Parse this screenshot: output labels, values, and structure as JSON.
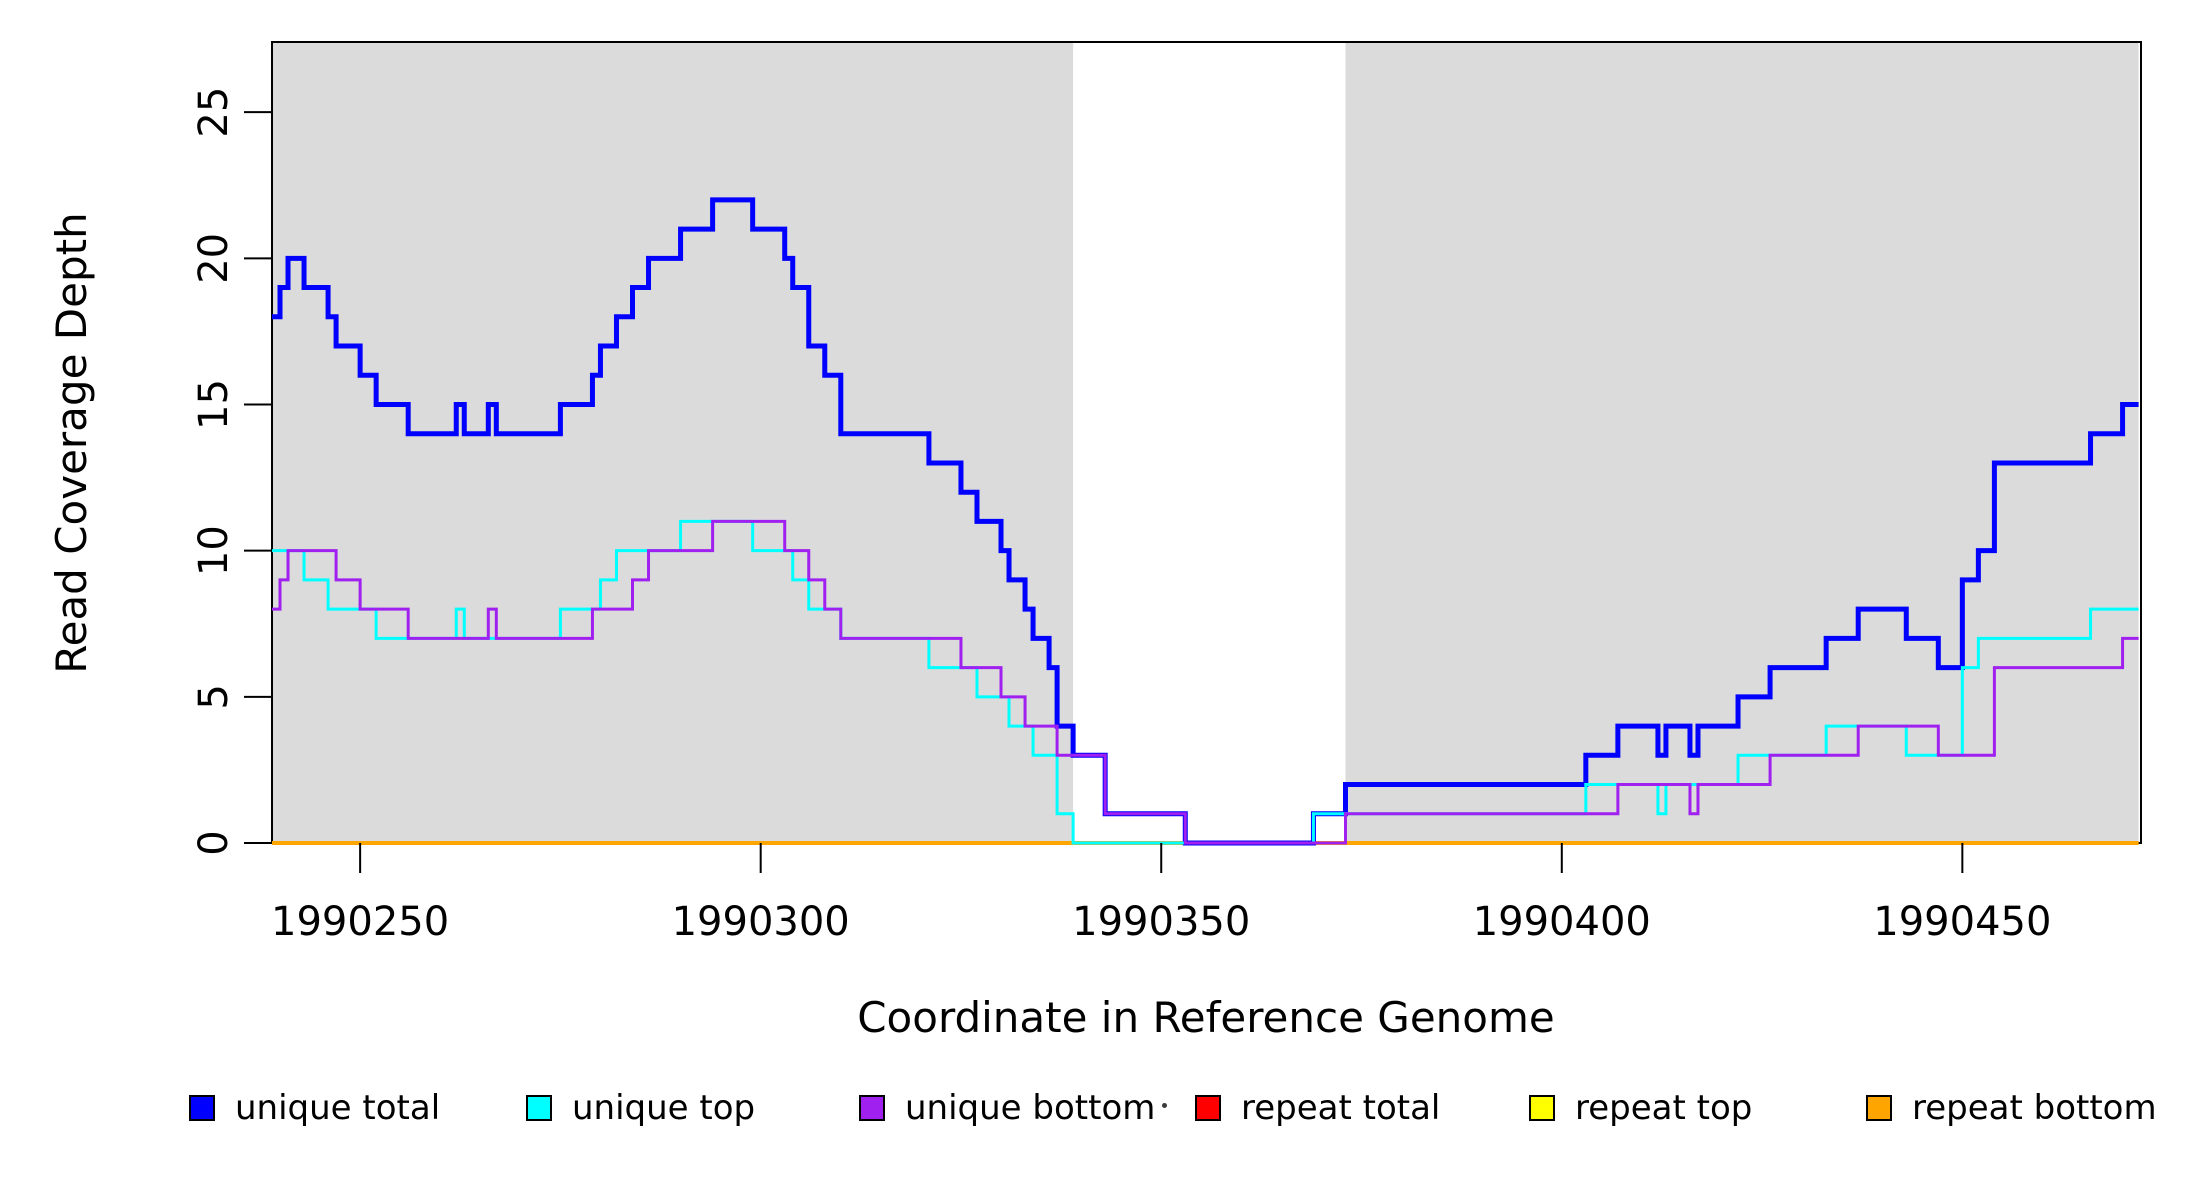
{
  "figure": {
    "background": "#ffffff"
  },
  "x_axis": {
    "label": "Coordinate in Reference Genome"
  },
  "y_axis": {
    "label": "Read Coverage Depth"
  },
  "legend": {
    "items": [
      {
        "label": "unique total",
        "color": "#0000FF"
      },
      {
        "label": "unique top",
        "color": "#00FFFF"
      },
      {
        "label": "unique bottom",
        "color": "#A020F0"
      },
      {
        "label": "repeat total",
        "color": "#FF0000"
      },
      {
        "label": "repeat top",
        "color": "#FFFF00"
      },
      {
        "label": "repeat bottom",
        "color": "#FFA500"
      }
    ]
  },
  "chart_data": {
    "type": "line",
    "subtype": "step-coverage",
    "title": "",
    "xlabel": "Coordinate in Reference Genome",
    "ylabel": "Read Coverage Depth",
    "xlim": [
      1990239,
      1990472
    ],
    "ylim": [
      0,
      27.4
    ],
    "x_ticks": [
      1990250,
      1990300,
      1990350,
      1990400,
      1990450
    ],
    "y_ticks": [
      0,
      5,
      10,
      15,
      20,
      25
    ],
    "grid": false,
    "legend_position": "bottom",
    "background_shading": {
      "color": "#DBDBDB",
      "regions": [
        [
          1990239,
          1990339
        ],
        [
          1990373,
          1990472
        ]
      ]
    },
    "series": [
      {
        "name": "repeat total",
        "color": "#FF0000",
        "width": 3,
        "segments": [
          [
            1990239,
            1990472,
            0
          ]
        ]
      },
      {
        "name": "repeat top",
        "color": "#FFFF00",
        "width": 3,
        "segments": [
          [
            1990239,
            1990472,
            0
          ]
        ]
      },
      {
        "name": "repeat bottom",
        "color": "#FFA500",
        "width": 4,
        "segments": [
          [
            1990239,
            1990472,
            0
          ]
        ]
      },
      {
        "name": "unique total",
        "color": "#0000FF",
        "width": 5,
        "segments": [
          [
            1990239,
            1990240,
            18
          ],
          [
            1990240,
            1990241,
            19
          ],
          [
            1990241,
            1990243,
            20
          ],
          [
            1990243,
            1990246,
            19
          ],
          [
            1990246,
            1990247,
            18
          ],
          [
            1990247,
            1990250,
            17
          ],
          [
            1990250,
            1990252,
            16
          ],
          [
            1990252,
            1990256,
            15
          ],
          [
            1990256,
            1990262,
            14
          ],
          [
            1990262,
            1990263,
            15
          ],
          [
            1990263,
            1990266,
            14
          ],
          [
            1990266,
            1990267,
            15
          ],
          [
            1990267,
            1990275,
            14
          ],
          [
            1990275,
            1990279,
            15
          ],
          [
            1990279,
            1990280,
            16
          ],
          [
            1990280,
            1990282,
            17
          ],
          [
            1990282,
            1990284,
            18
          ],
          [
            1990284,
            1990286,
            19
          ],
          [
            1990286,
            1990290,
            20
          ],
          [
            1990290,
            1990294,
            21
          ],
          [
            1990294,
            1990299,
            22
          ],
          [
            1990299,
            1990303,
            21
          ],
          [
            1990303,
            1990304,
            20
          ],
          [
            1990304,
            1990306,
            19
          ],
          [
            1990306,
            1990308,
            17
          ],
          [
            1990308,
            1990310,
            16
          ],
          [
            1990310,
            1990321,
            14
          ],
          [
            1990321,
            1990325,
            13
          ],
          [
            1990325,
            1990327,
            12
          ],
          [
            1990327,
            1990330,
            11
          ],
          [
            1990330,
            1990331,
            10
          ],
          [
            1990331,
            1990333,
            9
          ],
          [
            1990333,
            1990334,
            8
          ],
          [
            1990334,
            1990336,
            7
          ],
          [
            1990336,
            1990337,
            6
          ],
          [
            1990337,
            1990339,
            4
          ],
          [
            1990339,
            1990343,
            3
          ],
          [
            1990343,
            1990353,
            1
          ],
          [
            1990353,
            1990369,
            0
          ],
          [
            1990369,
            1990373,
            1
          ],
          [
            1990373,
            1990403,
            2
          ],
          [
            1990403,
            1990407,
            3
          ],
          [
            1990407,
            1990412,
            4
          ],
          [
            1990412,
            1990413,
            3
          ],
          [
            1990413,
            1990416,
            4
          ],
          [
            1990416,
            1990417,
            3
          ],
          [
            1990417,
            1990422,
            4
          ],
          [
            1990422,
            1990426,
            5
          ],
          [
            1990426,
            1990433,
            6
          ],
          [
            1990433,
            1990437,
            7
          ],
          [
            1990437,
            1990443,
            8
          ],
          [
            1990443,
            1990447,
            7
          ],
          [
            1990447,
            1990450,
            6
          ],
          [
            1990450,
            1990452,
            9
          ],
          [
            1990452,
            1990454,
            10
          ],
          [
            1990454,
            1990466,
            13
          ],
          [
            1990466,
            1990470,
            14
          ],
          [
            1990470,
            1990472,
            15
          ]
        ]
      },
      {
        "name": "unique top",
        "color": "#00FFFF",
        "width": 3,
        "segments": [
          [
            1990239,
            1990243,
            10
          ],
          [
            1990243,
            1990246,
            9
          ],
          [
            1990246,
            1990252,
            8
          ],
          [
            1990252,
            1990262,
            7
          ],
          [
            1990262,
            1990263,
            8
          ],
          [
            1990263,
            1990275,
            7
          ],
          [
            1990275,
            1990280,
            8
          ],
          [
            1990280,
            1990282,
            9
          ],
          [
            1990282,
            1990290,
            10
          ],
          [
            1990290,
            1990299,
            11
          ],
          [
            1990299,
            1990304,
            10
          ],
          [
            1990304,
            1990306,
            9
          ],
          [
            1990306,
            1990310,
            8
          ],
          [
            1990310,
            1990321,
            7
          ],
          [
            1990321,
            1990327,
            6
          ],
          [
            1990327,
            1990331,
            5
          ],
          [
            1990331,
            1990334,
            4
          ],
          [
            1990334,
            1990337,
            3
          ],
          [
            1990337,
            1990339,
            1
          ],
          [
            1990339,
            1990369,
            0
          ],
          [
            1990369,
            1990403,
            1
          ],
          [
            1990403,
            1990412,
            2
          ],
          [
            1990412,
            1990413,
            1
          ],
          [
            1990413,
            1990422,
            2
          ],
          [
            1990422,
            1990433,
            3
          ],
          [
            1990433,
            1990443,
            4
          ],
          [
            1990443,
            1990450,
            3
          ],
          [
            1990450,
            1990452,
            6
          ],
          [
            1990452,
            1990466,
            7
          ],
          [
            1990466,
            1990472,
            8
          ]
        ]
      },
      {
        "name": "unique bottom",
        "color": "#A020F0",
        "width": 3,
        "segments": [
          [
            1990239,
            1990240,
            8
          ],
          [
            1990240,
            1990241,
            9
          ],
          [
            1990241,
            1990247,
            10
          ],
          [
            1990247,
            1990250,
            9
          ],
          [
            1990250,
            1990256,
            8
          ],
          [
            1990256,
            1990266,
            7
          ],
          [
            1990266,
            1990267,
            8
          ],
          [
            1990267,
            1990279,
            7
          ],
          [
            1990279,
            1990284,
            8
          ],
          [
            1990284,
            1990286,
            9
          ],
          [
            1990286,
            1990294,
            10
          ],
          [
            1990294,
            1990303,
            11
          ],
          [
            1990303,
            1990306,
            10
          ],
          [
            1990306,
            1990308,
            9
          ],
          [
            1990308,
            1990310,
            8
          ],
          [
            1990310,
            1990325,
            7
          ],
          [
            1990325,
            1990330,
            6
          ],
          [
            1990330,
            1990333,
            5
          ],
          [
            1990333,
            1990337,
            4
          ],
          [
            1990337,
            1990343,
            3
          ],
          [
            1990343,
            1990353,
            1
          ],
          [
            1990353,
            1990373,
            0
          ],
          [
            1990373,
            1990407,
            1
          ],
          [
            1990407,
            1990416,
            2
          ],
          [
            1990416,
            1990417,
            1
          ],
          [
            1990417,
            1990426,
            2
          ],
          [
            1990426,
            1990437,
            3
          ],
          [
            1990437,
            1990447,
            4
          ],
          [
            1990447,
            1990454,
            3
          ],
          [
            1990454,
            1990470,
            6
          ],
          [
            1990470,
            1990472,
            7
          ]
        ]
      }
    ]
  }
}
